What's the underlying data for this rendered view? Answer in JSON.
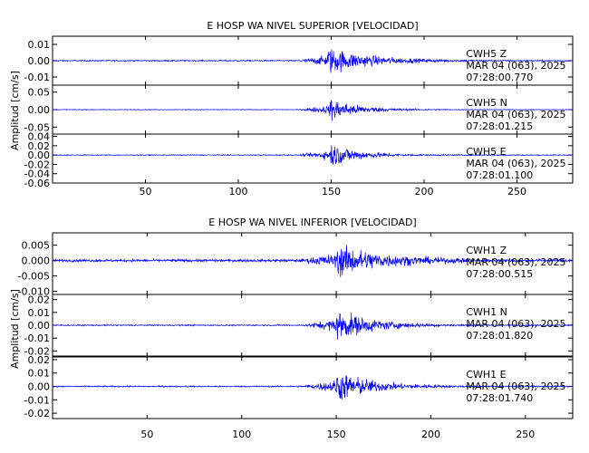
{
  "colors": {
    "trace": "#0000ff",
    "axis": "#000000",
    "background": "#ffffff"
  },
  "chart_data": [
    {
      "type": "line",
      "title": "E HOSP WA NIVEL SUPERIOR [VELOCIDAD]",
      "xlabel": "",
      "ylabel": "Amplitud [cm/s]",
      "xlim": [
        0,
        280
      ],
      "x_ticks": [
        50,
        100,
        150,
        200,
        250
      ],
      "grid": false,
      "series": [
        {
          "channel": "CWH5 Z",
          "date": "MAR 04 (063), 2025",
          "time": "07:28:00.770",
          "ylim": [
            -0.015,
            0.015
          ],
          "y_ticks": [
            0.01,
            0.0,
            -0.01
          ],
          "y_tick_labels": [
            "0.01",
            "0.00",
            "-0.01"
          ],
          "noise": 0.0006,
          "event_onset": 132,
          "event_peak": 148,
          "event_peak_amp": 0.014,
          "decay": 22
        },
        {
          "channel": "CWH5 N",
          "date": "MAR 04 (063), 2025",
          "time": "07:28:01.215",
          "ylim": [
            -0.07,
            0.07
          ],
          "y_ticks": [
            0.05,
            0.0,
            -0.05
          ],
          "y_tick_labels": [
            "0.05",
            "0.00",
            "-0.05"
          ],
          "noise": 0.0015,
          "event_onset": 133,
          "event_peak": 149,
          "event_peak_amp": 0.055,
          "decay": 15
        },
        {
          "channel": "CWH5 E",
          "date": "MAR 04 (063), 2025",
          "time": "07:28:01.100",
          "ylim": [
            -0.06,
            0.045
          ],
          "y_ticks": [
            0.04,
            0.02,
            0.0,
            -0.02,
            -0.04,
            -0.06
          ],
          "y_tick_labels": [
            "0.04",
            "0.02",
            "0.00",
            "-0.02",
            "-0.04",
            "-0.06"
          ],
          "noise": 0.0015,
          "event_onset": 133,
          "event_peak": 149,
          "event_peak_amp": 0.045,
          "decay": 15
        }
      ]
    },
    {
      "type": "line",
      "title": "E HOSP WA NIVEL INFERIOR [VELOCIDAD]",
      "xlabel": "",
      "ylabel": "Amplitud [cm/s]",
      "xlim": [
        0,
        275
      ],
      "x_ticks": [
        50,
        100,
        150,
        200,
        250
      ],
      "grid": false,
      "series": [
        {
          "channel": "CWH1 Z",
          "date": "MAR 04 (063), 2025",
          "time": "07:28:00.515",
          "ylim": [
            -0.011,
            0.009
          ],
          "y_ticks": [
            0.005,
            0.0,
            -0.005,
            -0.01
          ],
          "y_tick_labels": [
            "0.005",
            "0.000",
            "-0.005",
            "-0.010"
          ],
          "noise": 0.0007,
          "event_onset": 130,
          "event_peak": 150,
          "event_peak_amp": 0.0085,
          "decay": 25
        },
        {
          "channel": "CWH1 N",
          "date": "MAR 04 (063), 2025",
          "time": "07:28:01.820",
          "ylim": [
            -0.024,
            0.024
          ],
          "y_ticks": [
            0.02,
            0.01,
            0.0,
            -0.01,
            -0.02
          ],
          "y_tick_labels": [
            "0.02",
            "0.01",
            "0.00",
            "-0.01",
            "-0.02"
          ],
          "noise": 0.0008,
          "event_onset": 132,
          "event_peak": 150,
          "event_peak_amp": 0.021,
          "decay": 18
        },
        {
          "channel": "CWH1 E",
          "date": "MAR 04 (063), 2025",
          "time": "07:28:01.740",
          "ylim": [
            -0.024,
            0.022
          ],
          "y_ticks": [
            0.02,
            0.01,
            0.0,
            -0.01,
            -0.02
          ],
          "y_tick_labels": [
            "0.02",
            "0.01",
            "0.00",
            "-0.01",
            "-0.02"
          ],
          "noise": 0.0008,
          "event_onset": 132,
          "event_peak": 150,
          "event_peak_amp": 0.02,
          "decay": 18
        }
      ]
    }
  ]
}
